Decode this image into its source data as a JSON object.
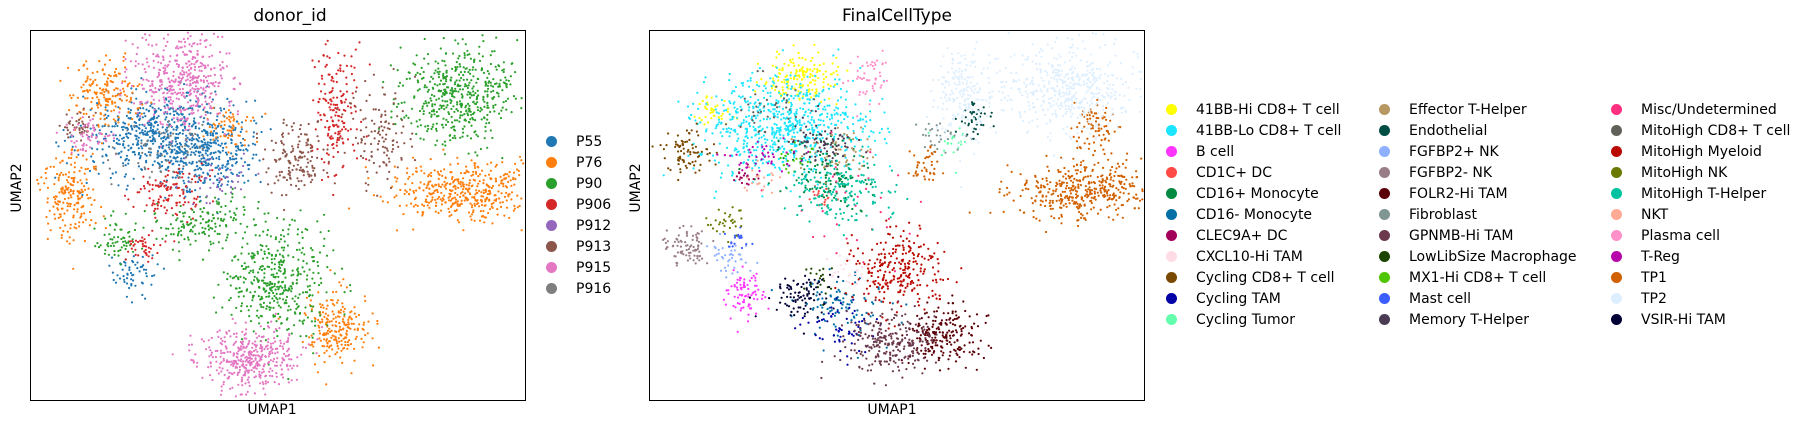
{
  "panels": [
    {
      "title": "donor_id",
      "xlabel": "UMAP1",
      "ylabel": "UMAP2",
      "legend": [
        {
          "label": "P55",
          "color": "#1f77b4"
        },
        {
          "label": "P76",
          "color": "#ff7f0e"
        },
        {
          "label": "P90",
          "color": "#2ca02c"
        },
        {
          "label": "P906",
          "color": "#d62728"
        },
        {
          "label": "P912",
          "color": "#9467bd"
        },
        {
          "label": "P913",
          "color": "#8c564b"
        },
        {
          "label": "P915",
          "color": "#e377c2"
        },
        {
          "label": "P916",
          "color": "#7f7f7f"
        }
      ]
    },
    {
      "title": "FinalCellType",
      "xlabel": "UMAP1",
      "ylabel": "UMAP2",
      "legend": [
        {
          "label": "41BB-Hi CD8+ T cell",
          "color": "#ffff00"
        },
        {
          "label": "41BB-Lo CD8+ T cell",
          "color": "#1ce6ff"
        },
        {
          "label": "B cell",
          "color": "#ff34ff"
        },
        {
          "label": "CD1C+ DC",
          "color": "#ff4a46"
        },
        {
          "label": "CD16+ Monocyte",
          "color": "#008941"
        },
        {
          "label": "CD16- Monocyte",
          "color": "#006fa6"
        },
        {
          "label": "CLEC9A+ DC",
          "color": "#a30059"
        },
        {
          "label": "CXCL10-Hi TAM",
          "color": "#ffdbe5"
        },
        {
          "label": "Cycling CD8+ T cell",
          "color": "#7a4900"
        },
        {
          "label": "Cycling TAM",
          "color": "#0000a6"
        },
        {
          "label": "Cycling Tumor",
          "color": "#63ffac"
        },
        {
          "label": "Effector T-Helper",
          "color": "#b79762"
        },
        {
          "label": "Endothelial",
          "color": "#004d43"
        },
        {
          "label": "FGFBP2+ NK",
          "color": "#8fb0ff"
        },
        {
          "label": "FGFBP2- NK",
          "color": "#997d87"
        },
        {
          "label": "FOLR2-Hi TAM",
          "color": "#5a0007"
        },
        {
          "label": "Fibroblast",
          "color": "#809693"
        },
        {
          "label": "GPNMB-Hi TAM",
          "color": "#6a3a4c"
        },
        {
          "label": "LowLibSize Macrophage",
          "color": "#1b4400"
        },
        {
          "label": "MX1-Hi CD8+ T cell",
          "color": "#4fc601"
        },
        {
          "label": "Mast cell",
          "color": "#3b5dff"
        },
        {
          "label": "Memory T-Helper",
          "color": "#4a3b53"
        },
        {
          "label": "Misc/Undetermined",
          "color": "#ff2f80"
        },
        {
          "label": "MitoHigh CD8+ T cell",
          "color": "#61615a"
        },
        {
          "label": "MitoHigh Myeloid",
          "color": "#ba0900"
        },
        {
          "label": "MitoHigh NK",
          "color": "#6b7900"
        },
        {
          "label": "MitoHigh T-Helper",
          "color": "#00c2a0"
        },
        {
          "label": "NKT",
          "color": "#ffaa92"
        },
        {
          "label": "Plasma cell",
          "color": "#ff90c9"
        },
        {
          "label": "T-Reg",
          "color": "#b903aa"
        },
        {
          "label": "TP1",
          "color": "#d16100"
        },
        {
          "label": "TP2",
          "color": "#ddefff"
        },
        {
          "label": "VSIR-Hi TAM",
          "color": "#000035"
        }
      ]
    }
  ],
  "chart_data": [
    {
      "type": "scatter",
      "title": "donor_id",
      "xlabel": "UMAP1",
      "ylabel": "UMAP2",
      "ticks": "none",
      "grid": false,
      "legend_placement": "right",
      "series": [
        {
          "name": "P55",
          "color": "#1f77b4",
          "clusters": [
            {
              "x": -4.0,
              "y": 4.5,
              "sx": 2.2,
              "sy": 1.3,
              "n": 650
            },
            {
              "x": -1.5,
              "y": 3.0,
              "sx": 1.2,
              "sy": 1.0,
              "n": 200
            },
            {
              "x": -5.5,
              "y": -4.0,
              "sx": 0.6,
              "sy": 0.8,
              "n": 60
            }
          ]
        },
        {
          "name": "P76",
          "color": "#ff7f0e",
          "clusters": [
            {
              "x": -7.0,
              "y": 7.0,
              "sx": 0.9,
              "sy": 1.0,
              "n": 180
            },
            {
              "x": -9.0,
              "y": 1.0,
              "sx": 0.8,
              "sy": 1.5,
              "n": 200
            },
            {
              "x": 12.0,
              "y": 1.0,
              "sx": 2.0,
              "sy": 0.9,
              "n": 450
            },
            {
              "x": 5.0,
              "y": -7.5,
              "sx": 0.8,
              "sy": 1.1,
              "n": 220
            },
            {
              "x": -0.5,
              "y": 5.0,
              "sx": 0.6,
              "sy": 0.6,
              "n": 60
            }
          ]
        },
        {
          "name": "P90",
          "color": "#2ca02c",
          "clusters": [
            {
              "x": 11.5,
              "y": 7.0,
              "sx": 1.5,
              "sy": 1.5,
              "n": 500
            },
            {
              "x": 2.0,
              "y": -4.5,
              "sx": 1.3,
              "sy": 1.8,
              "n": 420
            },
            {
              "x": -2.0,
              "y": -1.0,
              "sx": 1.5,
              "sy": 0.8,
              "n": 150
            },
            {
              "x": -6.5,
              "y": -2.0,
              "sx": 0.6,
              "sy": 0.7,
              "n": 60
            }
          ]
        },
        {
          "name": "P906",
          "color": "#d62728",
          "clusters": [
            {
              "x": 5.0,
              "y": 6.0,
              "sx": 0.6,
              "sy": 2.0,
              "n": 180
            },
            {
              "x": -3.5,
              "y": 1.0,
              "sx": 1.0,
              "sy": 0.8,
              "n": 120
            },
            {
              "x": -5.0,
              "y": -2.5,
              "sx": 0.5,
              "sy": 0.5,
              "n": 40
            }
          ]
        },
        {
          "name": "P912",
          "color": "#9467bd",
          "clusters": [
            {
              "x": -1.0,
              "y": 1.5,
              "sx": 1.0,
              "sy": 0.8,
              "n": 40
            }
          ]
        },
        {
          "name": "P913",
          "color": "#8c564b",
          "clusters": [
            {
              "x": 3.0,
              "y": 3.0,
              "sx": 0.8,
              "sy": 1.0,
              "n": 150
            },
            {
              "x": 7.5,
              "y": 4.5,
              "sx": 1.0,
              "sy": 1.6,
              "n": 120
            },
            {
              "x": -8.5,
              "y": 5.0,
              "sx": 0.5,
              "sy": 0.5,
              "n": 40
            }
          ]
        },
        {
          "name": "P915",
          "color": "#e377c2",
          "clusters": [
            {
              "x": -3.0,
              "y": 8.0,
              "sx": 1.2,
              "sy": 1.6,
              "n": 450
            },
            {
              "x": 0.5,
              "y": -9.5,
              "sx": 1.3,
              "sy": 1.0,
              "n": 400
            },
            {
              "x": -8.0,
              "y": 4.5,
              "sx": 0.6,
              "sy": 0.5,
              "n": 60
            }
          ]
        },
        {
          "name": "P916",
          "color": "#7f7f7f",
          "clusters": [
            {
              "x": -4.0,
              "y": 3.5,
              "sx": 1.5,
              "sy": 1.0,
              "n": 60
            }
          ]
        }
      ]
    },
    {
      "type": "scatter",
      "title": "FinalCellType",
      "xlabel": "UMAP1",
      "ylabel": "UMAP2",
      "ticks": "none",
      "grid": false,
      "legend_placement": "right",
      "series": [
        {
          "name": "41BB-Hi CD8+ T cell",
          "color": "#ffff00",
          "clusters": [
            {
              "x": -3.0,
              "y": 8.0,
              "sx": 1.0,
              "sy": 0.8,
              "n": 160
            },
            {
              "x": -7.5,
              "y": 6.0,
              "sx": 0.5,
              "sy": 0.5,
              "n": 40
            }
          ]
        },
        {
          "name": "41BB-Lo CD8+ T cell",
          "color": "#1ce6ff",
          "clusters": [
            {
              "x": -4.0,
              "y": 5.0,
              "sx": 2.2,
              "sy": 1.5,
              "n": 700
            }
          ]
        },
        {
          "name": "B cell",
          "color": "#ff34ff",
          "clusters": [
            {
              "x": -6.0,
              "y": -5.5,
              "sx": 0.5,
              "sy": 0.8,
              "n": 80
            }
          ]
        },
        {
          "name": "CD1C+ DC",
          "color": "#ff4a46",
          "clusters": [
            {
              "x": -2.0,
              "y": 0.5,
              "sx": 0.5,
              "sy": 0.4,
              "n": 20
            }
          ]
        },
        {
          "name": "CD16+ Monocyte",
          "color": "#008941",
          "clusters": [
            {
              "x": -1.5,
              "y": 2.0,
              "sx": 1.2,
              "sy": 1.0,
              "n": 120
            }
          ]
        },
        {
          "name": "CD16- Monocyte",
          "color": "#006fa6",
          "clusters": [
            {
              "x": -1.0,
              "y": -6.0,
              "sx": 1.2,
              "sy": 1.0,
              "n": 100
            }
          ]
        },
        {
          "name": "CLEC9A+ DC",
          "color": "#a30059",
          "clusters": [
            {
              "x": -6.0,
              "y": 2.0,
              "sx": 0.4,
              "sy": 0.4,
              "n": 20
            }
          ]
        },
        {
          "name": "CXCL10-Hi TAM",
          "color": "#ffdbe5",
          "clusters": [
            {
              "x": -0.5,
              "y": -4.0,
              "sx": 0.8,
              "sy": 0.6,
              "n": 30
            }
          ]
        },
        {
          "name": "Cycling CD8+ T cell",
          "color": "#7a4900",
          "clusters": [
            {
              "x": -9.0,
              "y": 3.5,
              "sx": 0.6,
              "sy": 0.7,
              "n": 80
            }
          ]
        },
        {
          "name": "Cycling TAM",
          "color": "#0000a6",
          "clusters": [
            {
              "x": -1.0,
              "y": -7.5,
              "sx": 1.0,
              "sy": 1.0,
              "n": 60
            }
          ]
        },
        {
          "name": "Cycling Tumor",
          "color": "#63ffac",
          "clusters": [
            {
              "x": 5.0,
              "y": 4.0,
              "sx": 0.6,
              "sy": 0.6,
              "n": 20
            }
          ]
        },
        {
          "name": "Effector T-Helper",
          "color": "#b79762",
          "clusters": [
            {
              "x": -1.0,
              "y": 3.5,
              "sx": 1.0,
              "sy": 0.8,
              "n": 60
            }
          ]
        },
        {
          "name": "Endothelial",
          "color": "#004d43",
          "clusters": [
            {
              "x": 6.0,
              "y": 5.5,
              "sx": 0.5,
              "sy": 0.6,
              "n": 40
            }
          ]
        },
        {
          "name": "FGFBP2+ NK",
          "color": "#8fb0ff",
          "clusters": [
            {
              "x": -7.0,
              "y": -3.0,
              "sx": 0.6,
              "sy": 0.6,
              "n": 40
            }
          ]
        },
        {
          "name": "FGFBP2- NK",
          "color": "#997d87",
          "clusters": [
            {
              "x": -9.0,
              "y": -2.5,
              "sx": 0.7,
              "sy": 0.6,
              "n": 80
            }
          ]
        },
        {
          "name": "FOLR2-Hi TAM",
          "color": "#5a0007",
          "clusters": [
            {
              "x": 4.5,
              "y": -8.0,
              "sx": 1.0,
              "sy": 1.0,
              "n": 220
            }
          ]
        },
        {
          "name": "Fibroblast",
          "color": "#809693",
          "clusters": [
            {
              "x": 4.0,
              "y": 4.5,
              "sx": 0.6,
              "sy": 0.6,
              "n": 30
            }
          ]
        },
        {
          "name": "GPNMB-Hi TAM",
          "color": "#6a3a4c",
          "clusters": [
            {
              "x": 1.5,
              "y": -8.5,
              "sx": 1.2,
              "sy": 1.0,
              "n": 250
            }
          ]
        },
        {
          "name": "LowLibSize Macrophage",
          "color": "#1b4400",
          "clusters": [
            {
              "x": -2.0,
              "y": -4.5,
              "sx": 0.5,
              "sy": 0.5,
              "n": 20
            }
          ]
        },
        {
          "name": "MX1-Hi CD8+ T cell",
          "color": "#4fc601",
          "clusters": [
            {
              "x": -3.5,
              "y": 3.0,
              "sx": 0.6,
              "sy": 0.5,
              "n": 20
            }
          ]
        },
        {
          "name": "Mast cell",
          "color": "#3b5dff",
          "clusters": [
            {
              "x": -6.5,
              "y": -2.0,
              "sx": 0.4,
              "sy": 0.4,
              "n": 20
            }
          ]
        },
        {
          "name": "Memory T-Helper",
          "color": "#4a3b53",
          "clusters": [
            {
              "x": -2.0,
              "y": 4.0,
              "sx": 1.0,
              "sy": 0.8,
              "n": 80
            }
          ]
        },
        {
          "name": "Misc/Undetermined",
          "color": "#ff2f80",
          "clusters": [
            {
              "x": 0.0,
              "y": 0.0,
              "sx": 2.0,
              "sy": 2.0,
              "n": 30
            }
          ]
        },
        {
          "name": "MitoHigh CD8+ T cell",
          "color": "#61615a",
          "clusters": [
            {
              "x": -4.5,
              "y": 6.0,
              "sx": 1.0,
              "sy": 0.8,
              "n": 40
            }
          ]
        },
        {
          "name": "MitoHigh Myeloid",
          "color": "#ba0900",
          "clusters": [
            {
              "x": 2.0,
              "y": -4.0,
              "sx": 1.2,
              "sy": 1.2,
              "n": 260
            }
          ]
        },
        {
          "name": "MitoHigh NK",
          "color": "#6b7900",
          "clusters": [
            {
              "x": -7.0,
              "y": -1.0,
              "sx": 0.5,
              "sy": 0.5,
              "n": 30
            }
          ]
        },
        {
          "name": "MitoHigh T-Helper",
          "color": "#00c2a0",
          "clusters": [
            {
              "x": -1.0,
              "y": 1.0,
              "sx": 1.5,
              "sy": 1.0,
              "n": 160
            }
          ]
        },
        {
          "name": "NKT",
          "color": "#ffaa92",
          "clusters": [
            {
              "x": -5.0,
              "y": 1.5,
              "sx": 0.6,
              "sy": 0.5,
              "n": 20
            }
          ]
        },
        {
          "name": "Plasma cell",
          "color": "#ff90c9",
          "clusters": [
            {
              "x": 0.5,
              "y": 8.0,
              "sx": 0.5,
              "sy": 0.8,
              "n": 50
            }
          ]
        },
        {
          "name": "T-Reg",
          "color": "#b903aa",
          "clusters": [
            {
              "x": -5.0,
              "y": 3.0,
              "sx": 0.8,
              "sy": 0.5,
              "n": 40
            }
          ]
        },
        {
          "name": "TP1",
          "color": "#d16100",
          "clusters": [
            {
              "x": 12.0,
              "y": 1.0,
              "sx": 2.0,
              "sy": 0.9,
              "n": 420
            },
            {
              "x": 12.5,
              "y": 5.0,
              "sx": 0.6,
              "sy": 0.8,
              "n": 80
            },
            {
              "x": 3.5,
              "y": 2.5,
              "sx": 0.4,
              "sy": 0.6,
              "n": 40
            }
          ]
        },
        {
          "name": "TP2",
          "color": "#ddefff",
          "clusters": [
            {
              "x": 11.0,
              "y": 7.5,
              "sx": 1.8,
              "sy": 1.4,
              "n": 500
            },
            {
              "x": 5.5,
              "y": 7.0,
              "sx": 0.8,
              "sy": 1.5,
              "n": 200
            }
          ]
        },
        {
          "name": "VSIR-Hi TAM",
          "color": "#000035",
          "clusters": [
            {
              "x": -3.0,
              "y": -5.5,
              "sx": 0.8,
              "sy": 0.8,
              "n": 90
            }
          ]
        }
      ]
    }
  ]
}
